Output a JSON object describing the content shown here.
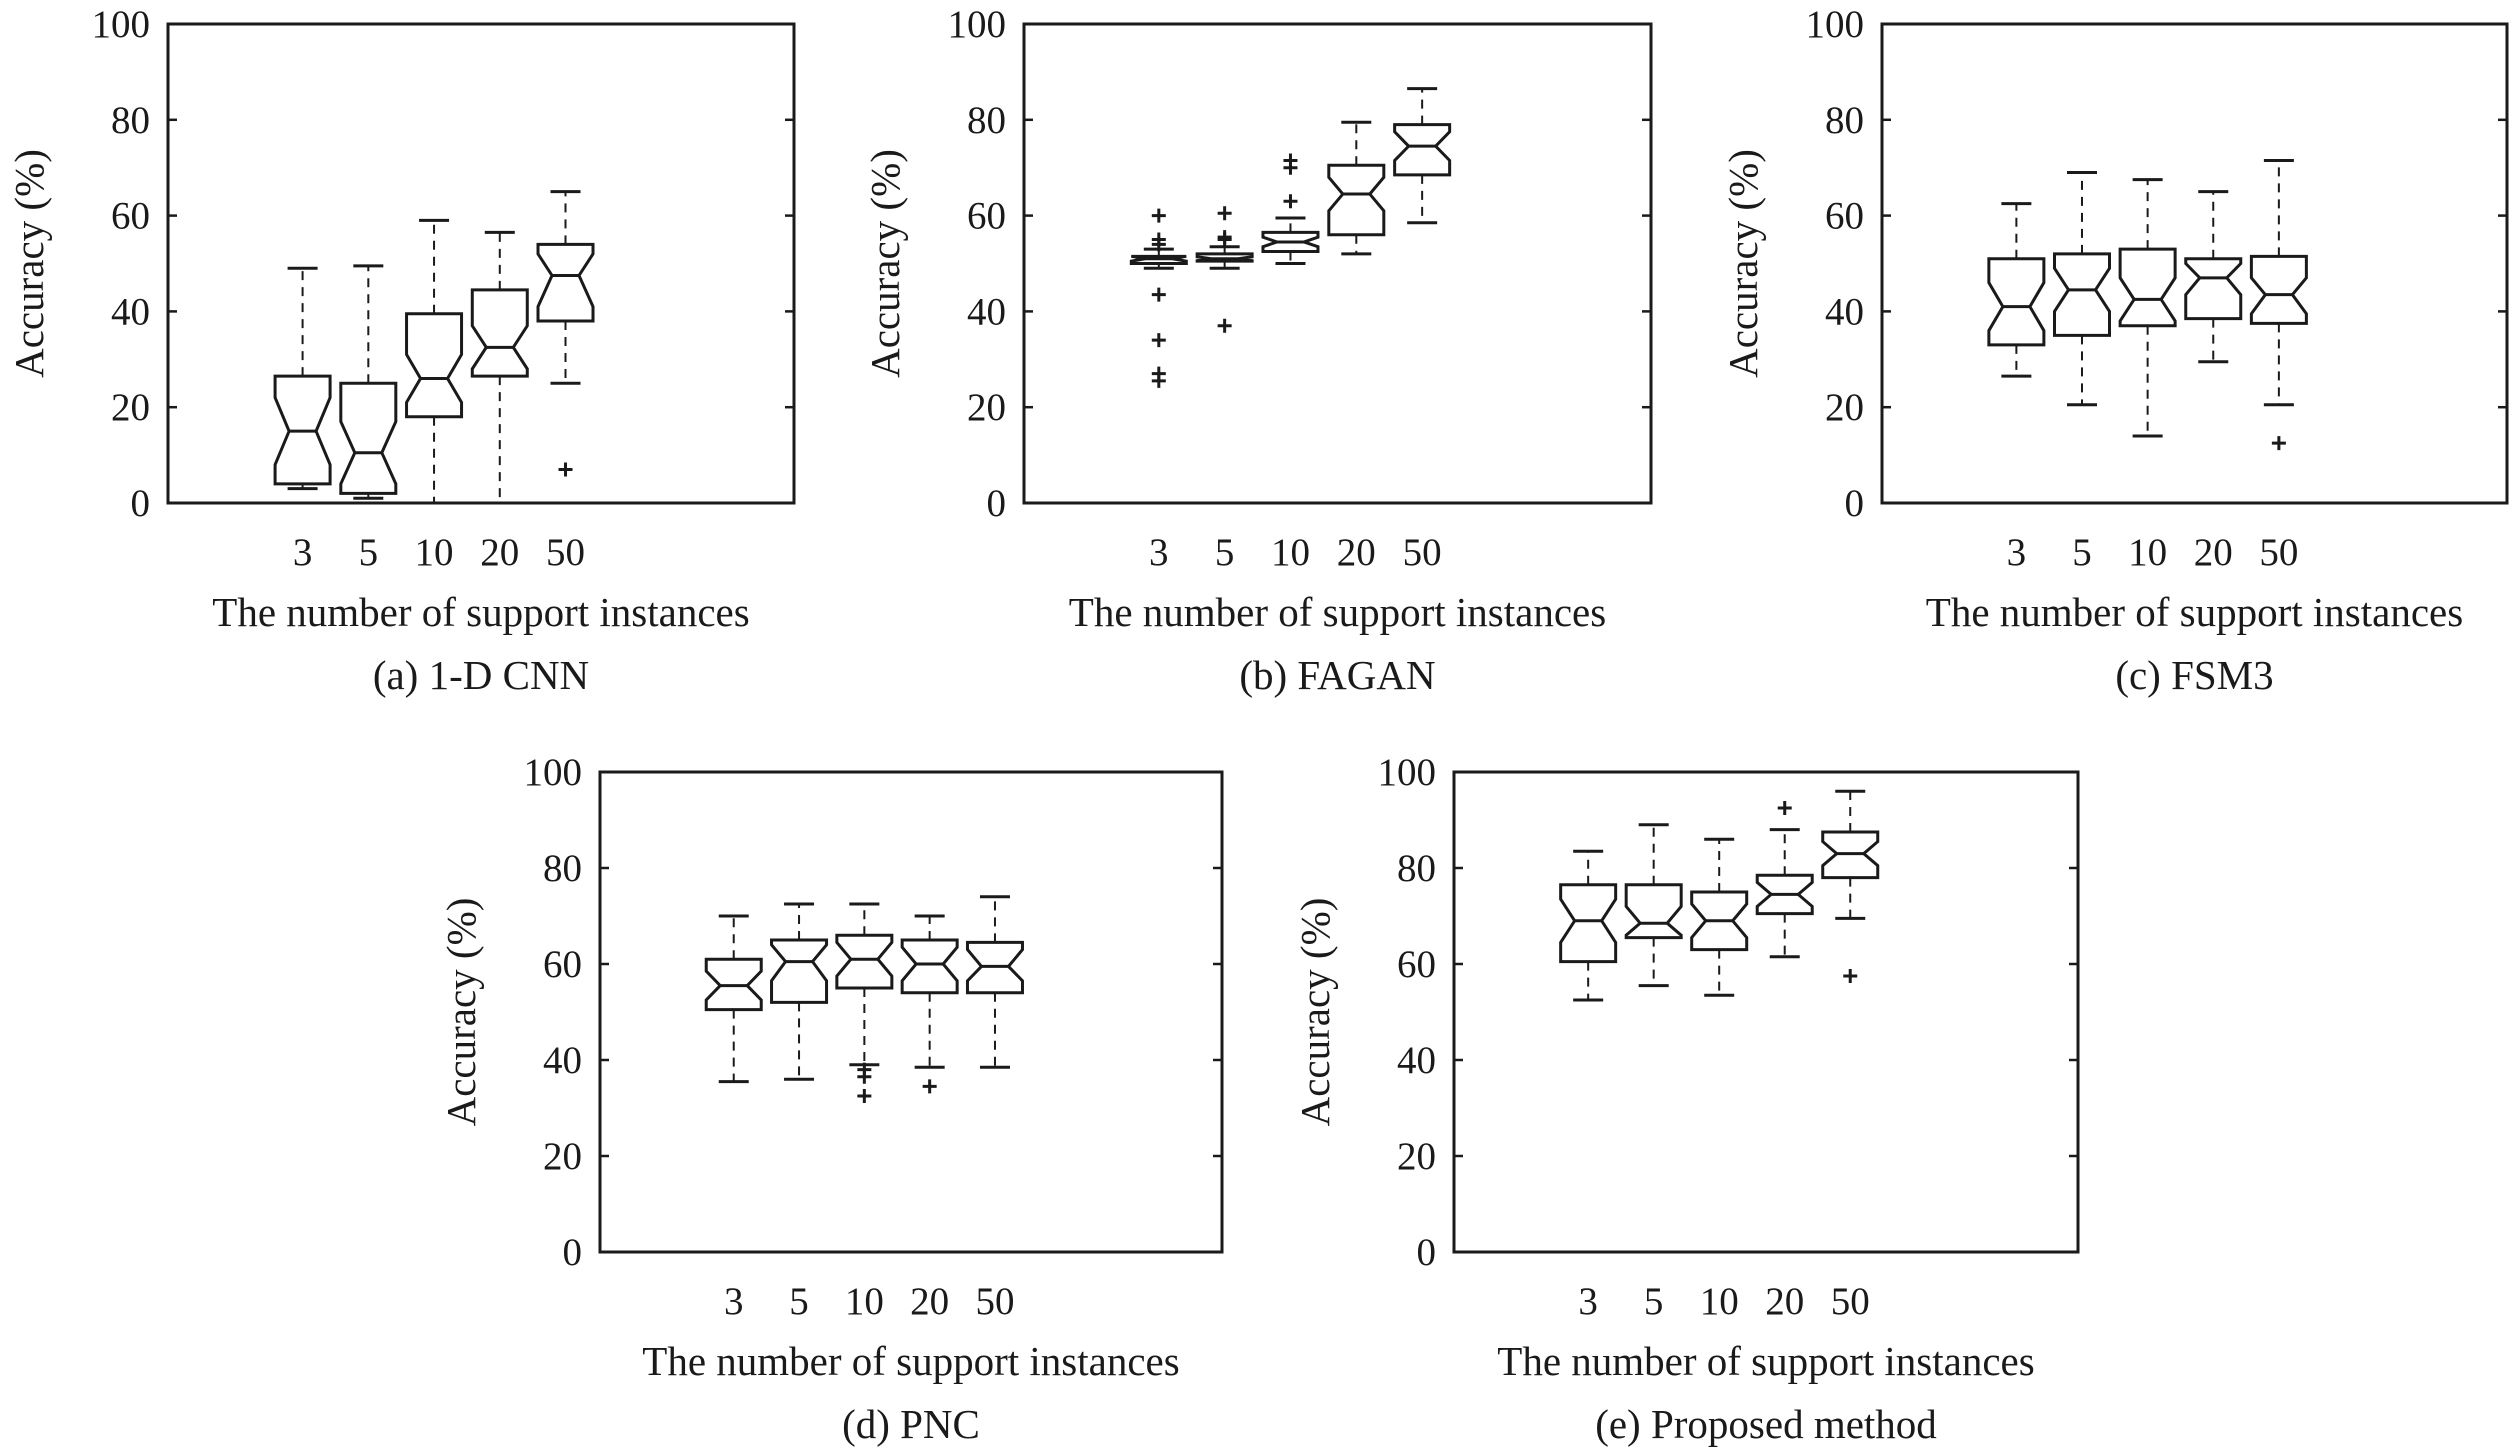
{
  "chart_data": [
    {
      "type": "boxplot",
      "caption": "(a) 1-D CNN",
      "xlabel": "The number of support instances",
      "ylabel": "Accuracy (%)",
      "ylim": [
        0,
        100
      ],
      "yticks": [
        0,
        20,
        40,
        60,
        80,
        100
      ],
      "categories": [
        "3",
        "5",
        "10",
        "20",
        "50"
      ],
      "notched": true,
      "boxes": [
        {
          "min": 3,
          "q1": 4,
          "median": 15,
          "q3": 26.5,
          "max": 49,
          "notch": [
            8,
            22
          ],
          "outliers": []
        },
        {
          "min": 1,
          "q1": 2,
          "median": 10.5,
          "q3": 25,
          "max": 49.5,
          "notch": [
            4,
            17
          ],
          "outliers": []
        },
        {
          "min": 0,
          "q1": 18,
          "median": 26,
          "q3": 39.5,
          "max": 59,
          "notch": [
            21,
            31
          ],
          "outliers": []
        },
        {
          "min": 0,
          "q1": 26.5,
          "median": 32.5,
          "q3": 44.5,
          "max": 56.5,
          "notch": [
            28,
            37
          ],
          "outliers": []
        },
        {
          "min": 25,
          "q1": 38,
          "median": 47.5,
          "q3": 54,
          "max": 65,
          "notch": [
            41,
            52
          ],
          "outliers": [
            7
          ]
        }
      ]
    },
    {
      "type": "boxplot",
      "caption": "(b) FAGAN",
      "xlabel": "The number of support instances",
      "ylabel": "Accuracy (%)",
      "ylim": [
        0,
        100
      ],
      "yticks": [
        0,
        20,
        40,
        60,
        80,
        100
      ],
      "categories": [
        "3",
        "5",
        "10",
        "20",
        "50"
      ],
      "notched": true,
      "boxes": [
        {
          "min": 49,
          "q1": 50,
          "median": 51,
          "q3": 51.5,
          "max": 53,
          "notch": [
            50.5,
            51.5
          ],
          "outliers": [
            60,
            55,
            54,
            43.5,
            34,
            27,
            25.5
          ]
        },
        {
          "min": 49,
          "q1": 50.5,
          "median": 51,
          "q3": 52,
          "max": 53.5,
          "notch": [
            50.6,
            51.4
          ],
          "outliers": [
            60.5,
            55.5,
            55,
            37
          ]
        },
        {
          "min": 50,
          "q1": 52.5,
          "median": 54.5,
          "q3": 56.5,
          "max": 59.5,
          "notch": [
            53.5,
            55.5
          ],
          "outliers": [
            63,
            70,
            71.5
          ]
        },
        {
          "min": 52,
          "q1": 56,
          "median": 64.5,
          "q3": 70.5,
          "max": 79.5,
          "notch": [
            61,
            68
          ],
          "outliers": []
        },
        {
          "min": 58.5,
          "q1": 68.5,
          "median": 74.5,
          "q3": 79,
          "max": 86.5,
          "notch": [
            71.5,
            77.5
          ],
          "outliers": []
        }
      ]
    },
    {
      "type": "boxplot",
      "caption": "(c) FSM3",
      "xlabel": "The number of support instances",
      "ylabel": "Accuracy (%)",
      "ylim": [
        0,
        100
      ],
      "yticks": [
        0,
        20,
        40,
        60,
        80,
        100
      ],
      "categories": [
        "3",
        "5",
        "10",
        "20",
        "50"
      ],
      "notched": true,
      "boxes": [
        {
          "min": 26.5,
          "q1": 33,
          "median": 41,
          "q3": 51,
          "max": 62.5,
          "notch": [
            36,
            46
          ],
          "outliers": []
        },
        {
          "min": 20.5,
          "q1": 35,
          "median": 44.5,
          "q3": 52,
          "max": 69,
          "notch": [
            40,
            49
          ],
          "outliers": []
        },
        {
          "min": 14,
          "q1": 37,
          "median": 42.5,
          "q3": 53,
          "max": 67.5,
          "notch": [
            38,
            47
          ],
          "outliers": []
        },
        {
          "min": 29.5,
          "q1": 38.5,
          "median": 47,
          "q3": 51,
          "max": 65,
          "notch": [
            43.5,
            50
          ],
          "outliers": []
        },
        {
          "min": 20.5,
          "q1": 37.5,
          "median": 43.5,
          "q3": 51.5,
          "max": 71.5,
          "notch": [
            39.5,
            47
          ],
          "outliers": [
            12.5
          ]
        }
      ]
    },
    {
      "type": "boxplot",
      "caption": "(d) PNC",
      "xlabel": "The number of support instances",
      "ylabel": "Accuracy (%)",
      "ylim": [
        0,
        100
      ],
      "yticks": [
        0,
        20,
        40,
        60,
        80,
        100
      ],
      "categories": [
        "3",
        "5",
        "10",
        "20",
        "50"
      ],
      "notched": true,
      "boxes": [
        {
          "min": 35.5,
          "q1": 50.5,
          "median": 55.5,
          "q3": 61,
          "max": 70,
          "notch": [
            52.5,
            58.5
          ],
          "outliers": []
        },
        {
          "min": 36,
          "q1": 52,
          "median": 60.5,
          "q3": 65,
          "max": 72.5,
          "notch": [
            56.5,
            64
          ],
          "outliers": []
        },
        {
          "min": 39,
          "q1": 55,
          "median": 61,
          "q3": 66,
          "max": 72.5,
          "notch": [
            57.5,
            64.5
          ],
          "outliers": [
            38,
            36.5,
            32.5
          ]
        },
        {
          "min": 38.5,
          "q1": 54,
          "median": 60,
          "q3": 65,
          "max": 70,
          "notch": [
            56.5,
            63.5
          ],
          "outliers": [
            34.5
          ]
        },
        {
          "min": 38.5,
          "q1": 54,
          "median": 59.5,
          "q3": 64.5,
          "max": 74,
          "notch": [
            56.5,
            63
          ],
          "outliers": []
        }
      ]
    },
    {
      "type": "boxplot",
      "caption": "(e) Proposed method",
      "xlabel": "The number of support instances",
      "ylabel": "Accuracy (%)",
      "ylim": [
        0,
        100
      ],
      "yticks": [
        0,
        20,
        40,
        60,
        80,
        100
      ],
      "categories": [
        "3",
        "5",
        "10",
        "20",
        "50"
      ],
      "notched": true,
      "boxes": [
        {
          "min": 52.5,
          "q1": 60.5,
          "median": 69,
          "q3": 76.5,
          "max": 83.5,
          "notch": [
            64.5,
            73.5
          ],
          "outliers": []
        },
        {
          "min": 55.5,
          "q1": 65.5,
          "median": 68.5,
          "q3": 76.5,
          "max": 89,
          "notch": [
            66,
            72
          ],
          "outliers": []
        },
        {
          "min": 53.5,
          "q1": 63,
          "median": 69,
          "q3": 75,
          "max": 86,
          "notch": [
            65.5,
            72.5
          ],
          "outliers": []
        },
        {
          "min": 61.5,
          "q1": 70.5,
          "median": 74.5,
          "q3": 78.5,
          "max": 88,
          "notch": [
            72,
            77
          ],
          "outliers": [
            92.5
          ]
        },
        {
          "min": 69.5,
          "q1": 78,
          "median": 83,
          "q3": 87.5,
          "max": 96,
          "notch": [
            80.5,
            85.5
          ],
          "outliers": [
            57.5
          ]
        }
      ]
    }
  ]
}
